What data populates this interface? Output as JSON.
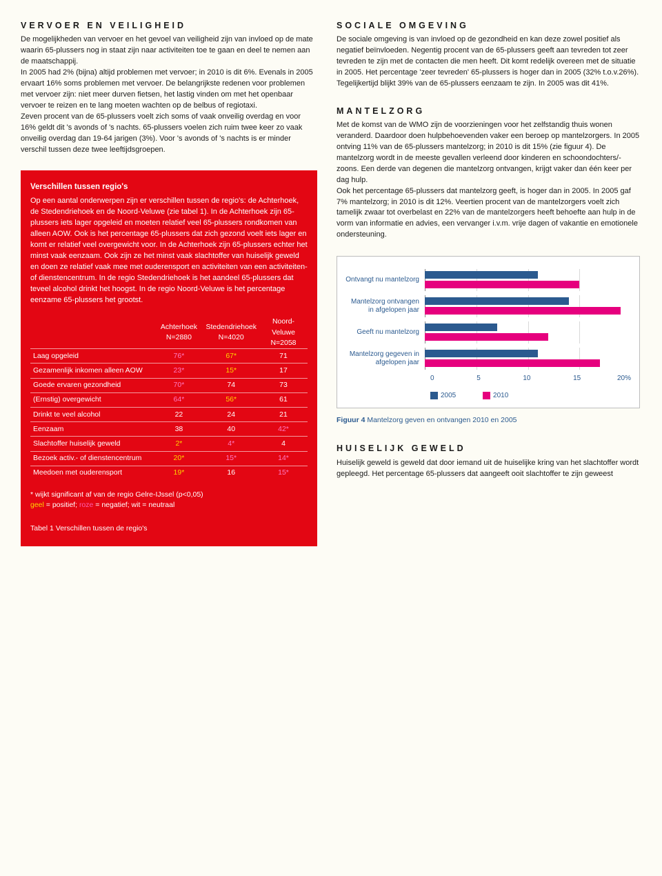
{
  "left": {
    "h1": "VERVOER EN VEILIGHEID",
    "p1": "De mogelijkheden van vervoer en het gevoel van veiligheid zijn van invloed op de mate waarin 65-plussers nog in staat zijn naar activiteiten toe te gaan en deel te nemen aan de maatschappij.",
    "p2": "In 2005 had 2% (bijna) altijd problemen met vervoer; in 2010 is dit 6%. Evenals in 2005 ervaart 16% soms problemen met vervoer. De belangrijkste redenen voor problemen met vervoer zijn: niet meer durven fietsen, het lastig vinden om met het openbaar vervoer te reizen en te lang moeten wachten op de belbus of regiotaxi.",
    "p3": "Zeven procent van de 65-plussers voelt zich soms of vaak onveilig overdag en voor 16% geldt dit 's avonds of 's nachts. 65-plussers voelen zich ruim twee keer zo vaak onveilig overdag dan 19-64 jarigen (3%). Voor 's avonds of 's nachts is er minder verschil tussen deze twee leeftijdsgroepen.",
    "redbox": {
      "title": "Verschillen tussen regio's",
      "body": "Op een aantal onderwerpen zijn er verschillen tussen de regio's: de Achterhoek, de Stedendriehoek en de Noord-Veluwe (zie tabel 1). In de Achterhoek zijn 65-plussers iets lager opgeleid en moeten relatief veel 65-plussers rondkomen van alleen AOW. Ook is het percentage 65-plussers dat zich gezond voelt iets lager en komt er relatief veel overgewicht voor. In de Achterhoek zijn 65-plussers echter het minst vaak eenzaam. Ook zijn ze het minst vaak slachtoffer van huiselijk geweld en doen ze relatief vaak mee met ouderensport en activiteiten van een activiteiten- of dienstencentrum. In de regio Stedendriehoek is het aandeel 65-plussers dat teveel alcohol drinkt het hoogst. In de regio Noord-Veluwe is het percentage eenzame 65-plussers het grootst.",
      "table": {
        "cols": [
          {
            "name": "Achterhoek",
            "n": "N=2880"
          },
          {
            "name": "Stedendriehoek",
            "n": "N=4020"
          },
          {
            "name": "Noord-Veluwe",
            "n": "N=2058"
          }
        ],
        "rows": [
          {
            "label": "Laag opgeleid",
            "v": [
              "76*",
              "67*",
              "71"
            ],
            "c": [
              "neg",
              "pos",
              "neu"
            ]
          },
          {
            "label": "Gezamenlijk inkomen alleen AOW",
            "v": [
              "23*",
              "15*",
              "17"
            ],
            "c": [
              "neg",
              "pos",
              "neu"
            ]
          },
          {
            "label": "Goede ervaren gezondheid",
            "v": [
              "70*",
              "74",
              "73"
            ],
            "c": [
              "neg",
              "neu",
              "neu"
            ]
          },
          {
            "label": "(Ernstig) overgewicht",
            "v": [
              "64*",
              "56*",
              "61"
            ],
            "c": [
              "neg",
              "pos",
              "neu"
            ]
          },
          {
            "label": "Drinkt te veel alcohol",
            "v": [
              "22",
              "24",
              "21"
            ],
            "c": [
              "neu",
              "neu",
              "neu"
            ]
          },
          {
            "label": "Eenzaam",
            "v": [
              "38",
              "40",
              "42*"
            ],
            "c": [
              "neu",
              "neu",
              "neg"
            ]
          },
          {
            "label": "Slachtoffer huiselijk geweld",
            "v": [
              "2*",
              "4*",
              "4"
            ],
            "c": [
              "pos",
              "neg",
              "neu"
            ]
          },
          {
            "label": "Bezoek activ.- of dienstencentrum",
            "v": [
              "20*",
              "15*",
              "14*"
            ],
            "c": [
              "pos",
              "neg",
              "neg"
            ]
          },
          {
            "label": "Meedoen met ouderensport",
            "v": [
              "19*",
              "16",
              "15*"
            ],
            "c": [
              "pos",
              "neu",
              "neg"
            ]
          }
        ]
      },
      "footnote1": "* wijkt significant af van de regio Gelre-IJssel (p<0,05)",
      "footnote2a": "geel",
      "footnote2b": " = positief; ",
      "footnote2c": "roze",
      "footnote2d": " = negatief; wit = neutraal",
      "caption": "Tabel 1  Verschillen tussen de regio's"
    }
  },
  "right": {
    "h1": "SOCIALE OMGEVING",
    "p1": "De sociale omgeving is van invloed op de gezondheid en kan deze zowel positief als negatief beïnvloeden. Negentig procent van de 65-plussers geeft aan tevreden tot zeer tevreden te zijn met de contacten die men heeft. Dit komt redelijk overeen met de situatie in 2005. Het percentage 'zeer tevreden' 65-plussers is hoger dan in 2005 (32% t.o.v.26%). Tegelijkertijd blijkt 39% van de 65-plussers eenzaam te zijn. In 2005 was dit 41%.",
    "h2": "MANTELZORG",
    "p2": "Met de komst van de WMO zijn de voorzieningen voor het zelfstandig thuis wonen veranderd. Daardoor doen hulpbehoevenden vaker een beroep op mantelzorgers. In 2005 ontving 11% van de 65-plussers mantelzorg; in 2010 is dit 15% (zie figuur 4). De mantelzorg wordt in de meeste gevallen verleend door kinderen en schoondochters/-zoons. Een derde van degenen die mantelzorg ontvangen, krijgt vaker dan één keer per dag hulp.",
    "p3": "Ook het percentage 65-plussers dat mantelzorg geeft, is hoger dan in 2005. In 2005 gaf 7% mantelzorg; in 2010 is dit 12%. Veertien procent van de mantelzorgers voelt zich tamelijk zwaar tot overbelast en 22% van de mantelzorgers heeft behoefte aan hulp in de vorm van informatie en advies, een vervanger i.v.m. vrije dagen of vakantie en emotionele ondersteuning.",
    "chart": {
      "xmax": 20,
      "xticks": [
        0,
        5,
        10,
        15,
        "20%"
      ],
      "colors": {
        "2005": "#2b5a8f",
        "2010": "#e6007e"
      },
      "items": [
        {
          "label": "Ontvangt nu mantelzorg",
          "v2005": 11,
          "v2010": 15
        },
        {
          "label": "Mantelzorg ontvangen in afgelopen jaar",
          "v2005": 14,
          "v2010": 19
        },
        {
          "label": "Geeft nu mantelzorg",
          "v2005": 7,
          "v2010": 12
        },
        {
          "label": "Mantelzorg gegeven in afgelopen jaar",
          "v2005": 11,
          "v2010": 17
        }
      ],
      "legend": [
        "2005",
        "2010"
      ],
      "caption_b": "Figuur 4",
      "caption": "  Mantelzorg geven en ontvangen 2010 en 2005"
    },
    "h3": "HUISELIJK GEWELD",
    "p4": "Huiselijk geweld is geweld dat door iemand uit de huiselijke kring van het slachtoffer wordt gepleegd. Het percentage 65-plussers dat aangeeft ooit slachtoffer te zijn geweest"
  }
}
